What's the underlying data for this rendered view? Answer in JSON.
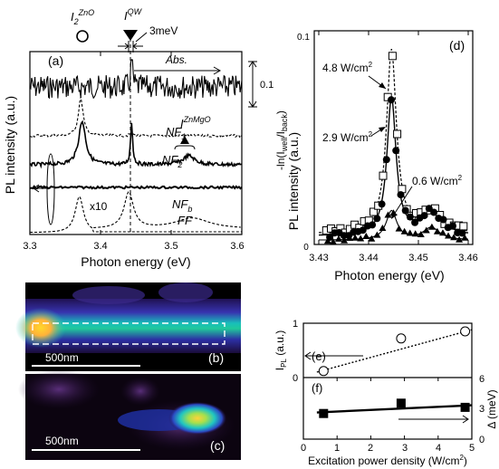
{
  "panels": {
    "a": {
      "letter": "(a)",
      "ylabel": "PL intensity (a.u.)",
      "xlabel": "Photon energy (eV)",
      "xticks": [
        "3.3",
        "3.4",
        "3.5",
        "3.6"
      ],
      "labels": {
        "i2zno": "I",
        "i2zno_sub": "2",
        "i2zno_sup": "ZnO",
        "iqw": "I",
        "iqw_sup": "QW",
        "mev": "3meV",
        "abs": "Abs.",
        "scale": "0.1",
        "nf1": "NF",
        "nf1_sub": "1",
        "nf2": "NF",
        "nf2_sub": "2",
        "iznmgo": "I",
        "iznmgo_sup": "ZnMgO",
        "nfb": "NF",
        "nfb_sub": "b",
        "x10": "x10",
        "ff": "FF"
      }
    },
    "b": {
      "letter": "(b)",
      "scalebar": "500nm"
    },
    "c": {
      "letter": "(c)",
      "scalebar": "500nm"
    },
    "d": {
      "letter": "(d)",
      "ylabel_left": "PL intensity (a.u.)",
      "ylabel_right": "-ln(I",
      "ylabel_right_sub1": "well",
      "ylabel_right_mid": "/I",
      "ylabel_right_sub2": "back",
      "ylabel_right_end": ")",
      "xlabel": "Photon energy (eV)",
      "xticks": [
        "3.43",
        "3.44",
        "3.45",
        "3.46"
      ],
      "ytop": "0.1",
      "ybottom": "0",
      "labels": {
        "p48": "4.8 W/cm",
        "p29": "2.9 W/cm",
        "p06": "0.6 W/cm",
        "sq": "2"
      }
    },
    "ef": {
      "e_letter": "(e)",
      "f_letter": "(f)",
      "ylabel_left": "I",
      "ylabel_left_sub": "PL",
      "ylabel_left_unit": " (a.u.)",
      "ylabel_right": "Δ (meV)",
      "xlabel": "Excitation power density (W/cm",
      "xlabel_sq": "2",
      "xlabel_end": ")",
      "xticks": [
        "0",
        "1",
        "2",
        "3",
        "4",
        "5"
      ],
      "e_yticks": [
        "1",
        "0"
      ],
      "f_yticks": [
        "6",
        "3",
        "0"
      ]
    }
  },
  "chart_data": [
    {
      "type": "scatter",
      "panel": "e",
      "xlabel": "Excitation power density (W/cm2)",
      "ylabel": "IPL (a.u.)",
      "xlim": [
        0,
        5
      ],
      "ylim": [
        0,
        1
      ],
      "x": [
        0.6,
        2.9,
        4.8
      ],
      "values": [
        0.12,
        0.72,
        0.85
      ]
    },
    {
      "type": "scatter",
      "panel": "f",
      "xlabel": "Excitation power density (W/cm2)",
      "ylabel": "Δ (meV)",
      "xlim": [
        0,
        5
      ],
      "ylim": [
        0,
        6
      ],
      "x": [
        0.6,
        2.9,
        4.8
      ],
      "values": [
        2.5,
        3.5,
        3.1
      ]
    },
    {
      "type": "line",
      "panel": "d",
      "xlabel": "Photon energy (eV)",
      "xlim": [
        3.43,
        3.46
      ],
      "ylim": [
        0,
        0.1
      ],
      "series": [
        {
          "name": "4.8 W/cm2"
        },
        {
          "name": "2.9 W/cm2"
        },
        {
          "name": "0.6 W/cm2"
        }
      ]
    }
  ]
}
